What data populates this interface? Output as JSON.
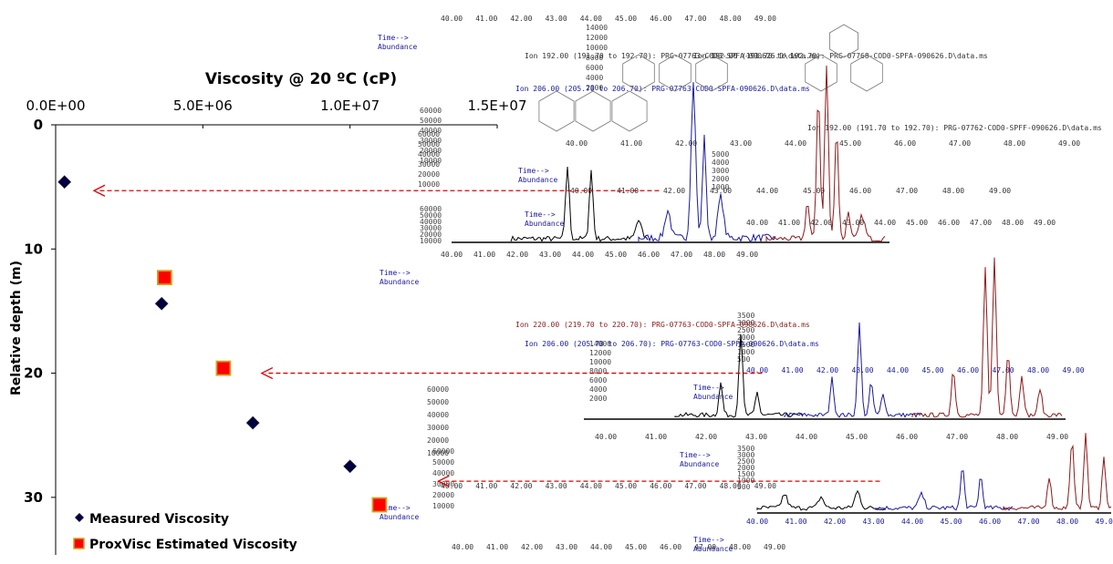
{
  "chart_data": {
    "type": "scatter",
    "title": "Viscosity @ 20 ºC (cP)",
    "xlabel": "Viscosity @ 20 ºC (cP)",
    "ylabel": "Relative depth (m)",
    "xlim": [
      0,
      15000000
    ],
    "ylim": [
      0,
      35
    ],
    "x_axis_position": "top",
    "y_inverted": true,
    "grid": false,
    "legend_position": "bottom-left",
    "x_tick_labels": [
      "0.0E+00",
      "5.0E+06",
      "1.0E+07",
      "1.5E+07"
    ],
    "x_ticks": [
      0,
      5000000,
      10000000,
      15000000
    ],
    "y_ticks": [
      0,
      10,
      20,
      30
    ],
    "series": [
      {
        "name": "Measured Viscosity",
        "marker": "diamond",
        "color": "#000040",
        "points": [
          {
            "x": 300000,
            "y": 4.6
          },
          {
            "x": 3600000,
            "y": 14.4
          },
          {
            "x": 6700000,
            "y": 24.0
          },
          {
            "x": 10000000,
            "y": 27.5
          }
        ]
      },
      {
        "name": "ProxVisc Estimated Viscosity",
        "marker": "square",
        "color": "#ff0000",
        "edge_color": "#d4a020",
        "points": [
          {
            "x": 3700000,
            "y": 12.3
          },
          {
            "x": 5700000,
            "y": 19.6
          },
          {
            "x": 11000000,
            "y": 30.6
          }
        ]
      }
    ],
    "arrows": [
      {
        "from_x": 20500000,
        "to_x": 1300000,
        "y": 5.3,
        "color": "#e00000"
      },
      {
        "from_x": 24000000,
        "to_x": 7000000,
        "y": 20.0,
        "color": "#e00000"
      },
      {
        "from_x": 28000000,
        "to_x": 13000000,
        "y": 28.7,
        "color": "#e00000"
      }
    ]
  },
  "chromatograms": {
    "time_label": "Time-->",
    "abundance_label": "Abundance",
    "ion_labels": [
      "Ion 192.00 (191.70 to 192.70): PRG-07768-COD0-SPFA-090626.D\\data.ms",
      "Ion 192.00 (191.70 to 192.70): PRG-07763-COD0-SPFA-090626.D\\data.ms",
      "Ion 206.00 (205.70 to 206.70): PRG-07763-COD0-SPFA-090626.D\\data.ms",
      "Ion 192.00 (191.70 to 192.70): PRG-07762-COD0-SPFF-090626.D\\data.ms",
      "Ion 220.00 (219.70 to 220.70): PRG-07763-COD0-SPFA-090626.D\\data.ms",
      "Ion 206.00 (205.70 to 206.70): PRG-07763-COD0-SPFA-090626.D\\data.ms"
    ],
    "time_ticks": [
      "40.00",
      "41.00",
      "42.00",
      "43.00",
      "44.00",
      "45.00",
      "46.00",
      "47.00",
      "48.00",
      "49.00"
    ],
    "abundance_ticks_a": [
      "14000",
      "12000",
      "10000",
      "8000",
      "6000",
      "4000",
      "2000"
    ],
    "abundance_ticks_b": [
      "60000",
      "50000",
      "40000",
      "30000",
      "20000",
      "10000"
    ],
    "abundance_ticks_c": [
      "3500",
      "3000",
      "2500",
      "2000",
      "1500",
      "1000",
      "500"
    ],
    "abundance_ticks_d": [
      "5000",
      "4000",
      "3000",
      "2000",
      "1000"
    ],
    "trace_colors": [
      "#000000",
      "#1a1a9a",
      "#8b1a1a"
    ]
  }
}
